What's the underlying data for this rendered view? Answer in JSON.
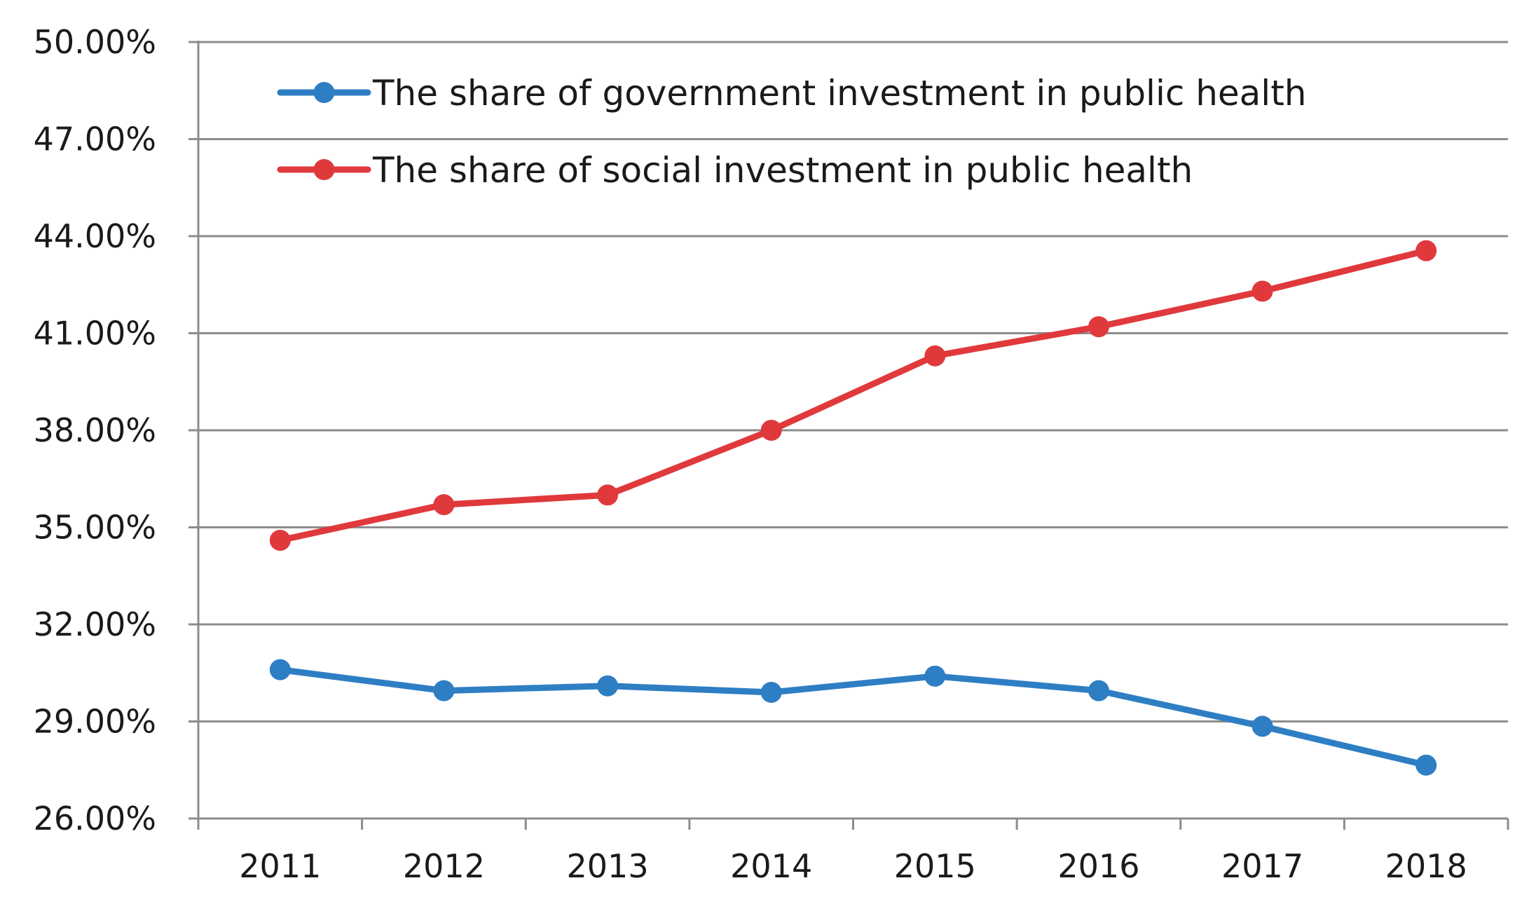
{
  "chart_data": {
    "type": "line",
    "title": "",
    "xlabel": "",
    "ylabel": "",
    "categories": [
      "2011",
      "2012",
      "2013",
      "2014",
      "2015",
      "2016",
      "2017",
      "2018"
    ],
    "y_ticks": [
      "26.00%",
      "29.00%",
      "32.00%",
      "35.00%",
      "38.00%",
      "41.00%",
      "44.00%",
      "47.00%",
      "50.00%"
    ],
    "ylim": [
      26,
      50
    ],
    "grid": true,
    "legend_position": "top-left inside",
    "series": [
      {
        "name": "The share of government investment in public health",
        "color": "#2e7ec4",
        "values": [
          30.6,
          29.95,
          30.1,
          29.9,
          30.4,
          29.95,
          28.85,
          27.65
        ]
      },
      {
        "name": "The share of social investment in public health",
        "color": "#e0393c",
        "values": [
          34.6,
          35.7,
          36.0,
          38.0,
          40.3,
          41.2,
          42.3,
          43.55
        ]
      }
    ]
  }
}
